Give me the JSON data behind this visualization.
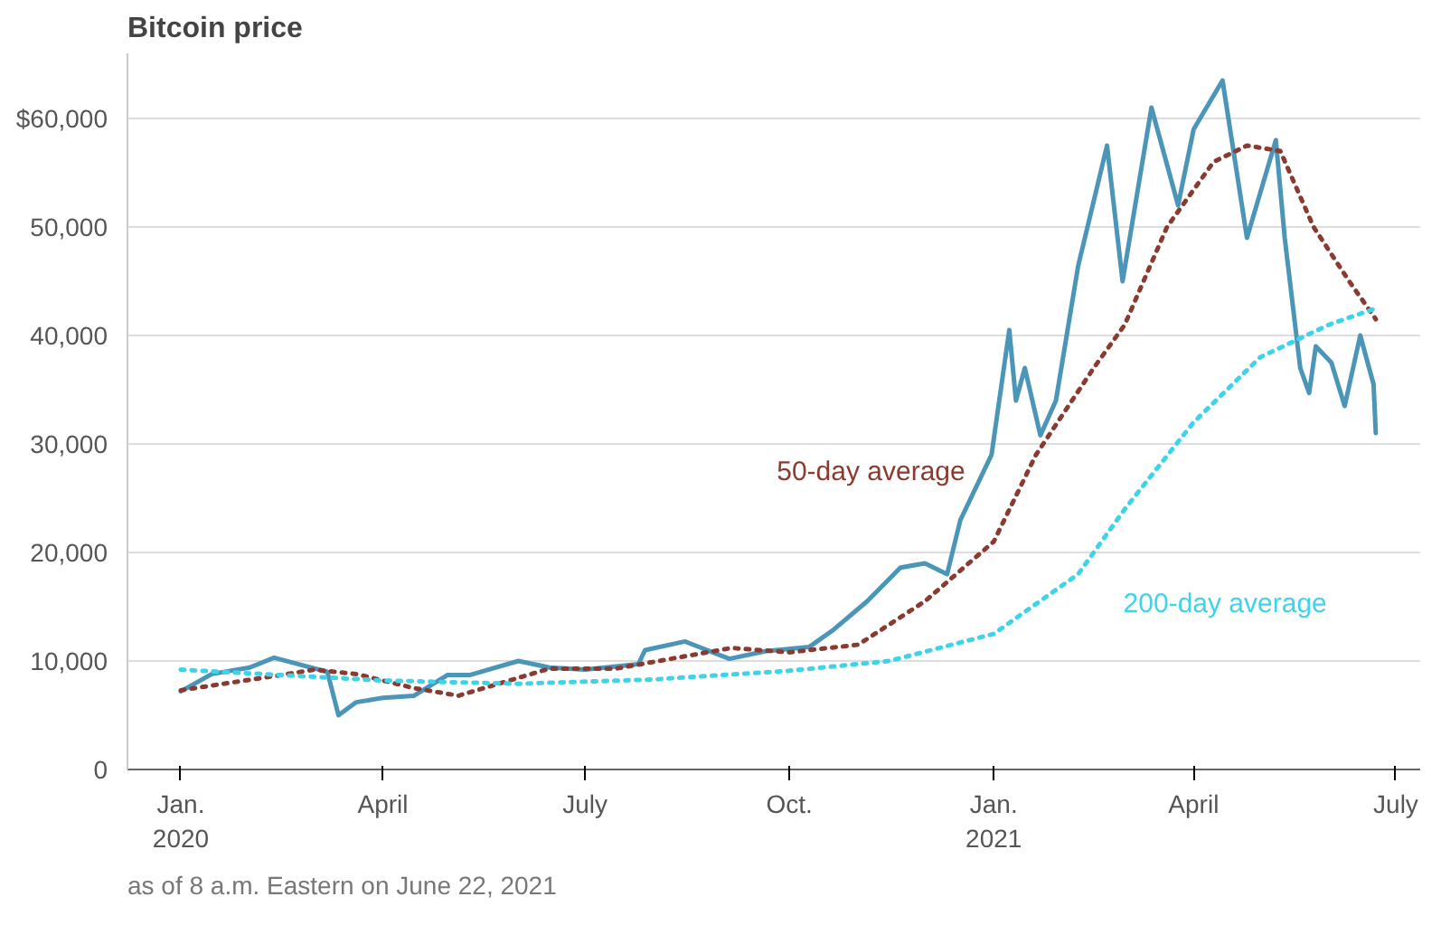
{
  "chart_data": {
    "type": "line",
    "title": "Bitcoin price",
    "xlim": [
      "2019-12-08",
      "2021-07-12"
    ],
    "xticks": [
      {
        "value": "2020-01-01",
        "label": "Jan.\n2020"
      },
      {
        "value": "2020-04-01",
        "label": "April"
      },
      {
        "value": "2020-07-01",
        "label": "July"
      },
      {
        "value": "2020-10-01",
        "label": "Oct."
      },
      {
        "value": "2021-01-01",
        "label": "Jan.\n2021"
      },
      {
        "value": "2021-04-01",
        "label": "April"
      },
      {
        "value": "2021-07-01",
        "label": "July"
      }
    ],
    "ylim": [
      0,
      66000
    ],
    "yticks": [
      0,
      {
        "value": 10000,
        "label": "10,000"
      },
      {
        "value": 20000,
        "label": "20,000"
      },
      {
        "value": 30000,
        "label": "30,000"
      },
      {
        "value": 40000,
        "label": "40,000"
      },
      {
        "value": 50000,
        "label": "50,000"
      },
      {
        "value": 60000,
        "label": "$60,000"
      }
    ],
    "grid": "y",
    "series": [
      {
        "color": "#4a95b8",
        "line_style": "solid",
        "x": [
          "2020-01-01",
          "2020-01-15",
          "2020-02-01",
          "2020-02-12",
          "2020-02-25",
          "2020-03-07",
          "2020-03-12",
          "2020-03-20",
          "2020-04-01",
          "2020-04-15",
          "2020-04-30",
          "2020-05-10",
          "2020-06-01",
          "2020-06-15",
          "2020-07-01",
          "2020-07-25",
          "2020-07-28",
          "2020-08-15",
          "2020-09-04",
          "2020-09-20",
          "2020-10-10",
          "2020-10-21",
          "2020-11-05",
          "2020-11-20",
          "2020-12-01",
          "2020-12-11",
          "2020-12-17",
          "2020-12-31",
          "2021-01-08",
          "2021-01-11",
          "2021-01-15",
          "2021-01-22",
          "2021-01-29",
          "2021-02-08",
          "2021-02-21",
          "2021-02-28",
          "2021-03-13",
          "2021-03-25",
          "2021-04-01",
          "2021-04-14",
          "2021-04-25",
          "2021-05-08",
          "2021-05-12",
          "2021-05-19",
          "2021-05-23",
          "2021-05-26",
          "2021-06-02",
          "2021-06-08",
          "2021-06-15",
          "2021-06-21",
          "2021-06-22"
        ],
        "values": [
          7200,
          8800,
          9400,
          10300,
          9600,
          9000,
          5000,
          6200,
          6600,
          6800,
          8700,
          8700,
          10000,
          9400,
          9200,
          9700,
          11000,
          11800,
          10200,
          10900,
          11300,
          12900,
          15500,
          18600,
          19000,
          18000,
          23000,
          29000,
          40500,
          34000,
          37000,
          30800,
          34000,
          46400,
          57500,
          45000,
          61000,
          52000,
          59000,
          63500,
          49000,
          58000,
          49000,
          37000,
          34700,
          39000,
          37500,
          33500,
          40000,
          35500,
          31000
        ]
      },
      {
        "name": "50-day average",
        "color": "#8b3a2f",
        "line_style": "dotted",
        "x": [
          "2020-01-01",
          "2020-02-15",
          "2020-03-01",
          "2020-03-20",
          "2020-04-15",
          "2020-05-05",
          "2020-06-15",
          "2020-07-15",
          "2020-09-05",
          "2020-10-01",
          "2020-11-01",
          "2020-12-01",
          "2021-01-01",
          "2021-01-20",
          "2021-02-15",
          "2021-03-01",
          "2021-03-20",
          "2021-04-10",
          "2021-04-25",
          "2021-05-10",
          "2021-05-25",
          "2021-06-10",
          "2021-06-22"
        ],
        "values": [
          7300,
          8700,
          9200,
          8800,
          7500,
          6800,
          9300,
          9300,
          11200,
          10800,
          11500,
          15500,
          21000,
          29000,
          37000,
          41000,
          50000,
          56000,
          57500,
          57000,
          50000,
          45000,
          41500
        ]
      },
      {
        "name": "200-day average",
        "color": "#3fd3ea",
        "line_style": "dotted",
        "x": [
          "2020-01-01",
          "2020-04-01",
          "2020-06-01",
          "2020-08-01",
          "2020-10-01",
          "2020-11-15",
          "2021-01-01",
          "2021-02-08",
          "2021-03-01",
          "2021-04-01",
          "2021-05-01",
          "2021-06-01",
          "2021-06-22"
        ],
        "values": [
          9200,
          8200,
          7900,
          8300,
          9100,
          10000,
          12500,
          18000,
          24000,
          32000,
          38000,
          41000,
          42500
        ]
      }
    ],
    "annotations": [
      "as of 8 a.m. Eastern on June 22, 2021"
    ]
  }
}
